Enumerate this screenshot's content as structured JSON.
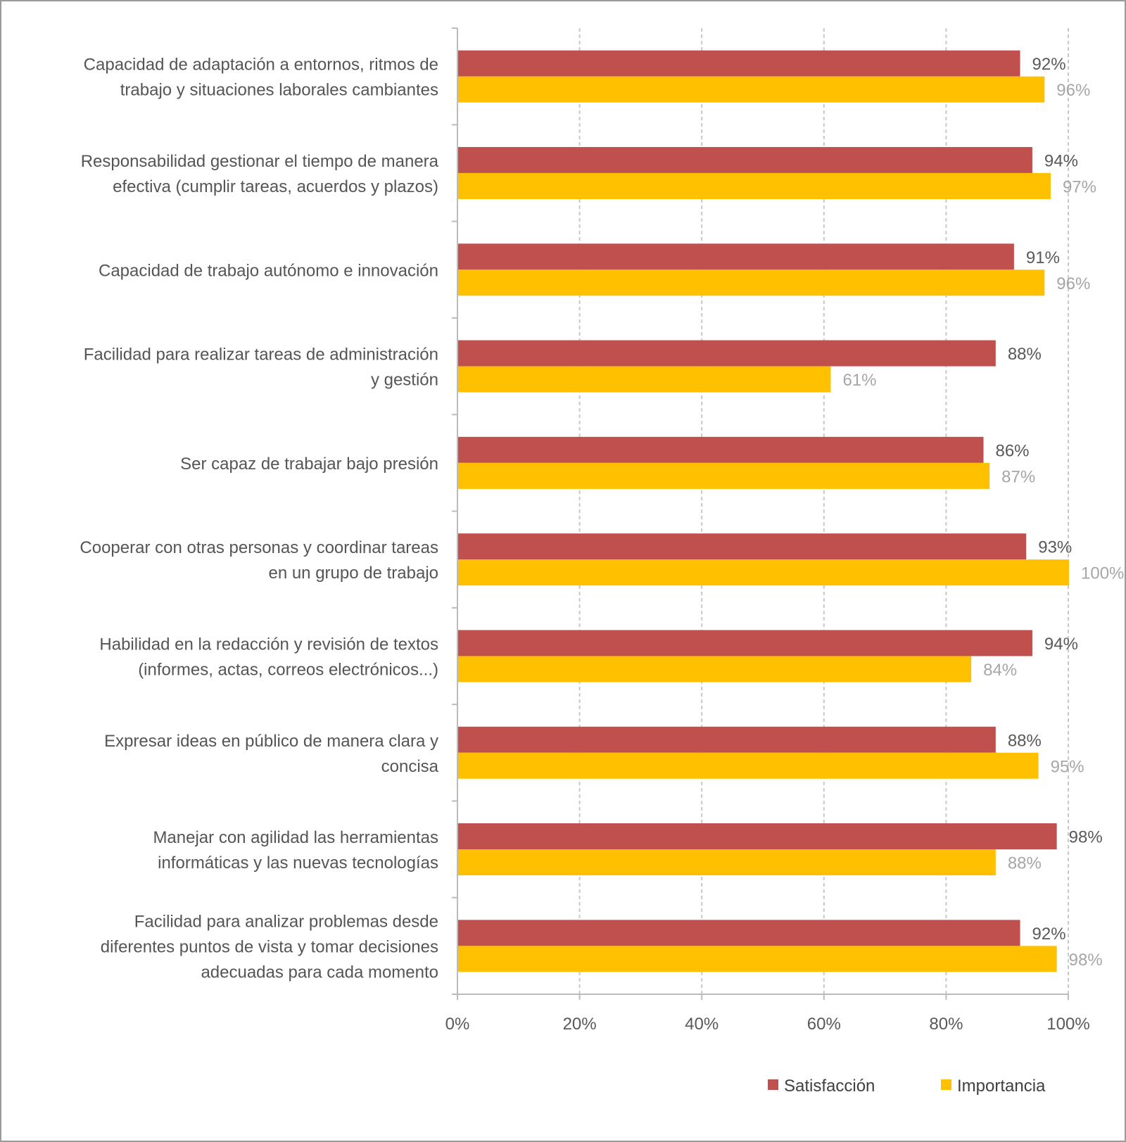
{
  "chart_data": {
    "type": "bar",
    "orientation": "horizontal",
    "title": "",
    "xlabel": "",
    "ylabel": "",
    "xlim": [
      0,
      100
    ],
    "x_ticks": [
      "0%",
      "20%",
      "40%",
      "60%",
      "80%",
      "100%"
    ],
    "grid": "vertical dashed",
    "legend_position": "bottom-right",
    "categories": [
      [
        "Capacidad de adaptación a entornos, ritmos de",
        "trabajo y situaciones laborales cambiantes"
      ],
      [
        "Responsabilidad gestionar el tiempo de manera",
        "efectiva (cumplir tareas, acuerdos y plazos)"
      ],
      [
        "Capacidad de trabajo autónomo e innovación"
      ],
      [
        "Facilidad para realizar tareas de administración",
        "y gestión"
      ],
      [
        "Ser capaz de trabajar bajo presión"
      ],
      [
        "Cooperar con otras personas y coordinar tareas",
        "en un grupo de trabajo"
      ],
      [
        "Habilidad en la redacción y revisión de textos",
        "(informes, actas, correos electrónicos...)"
      ],
      [
        "Expresar ideas en público de manera clara y",
        "concisa"
      ],
      [
        "Manejar con agilidad las herramientas",
        "informáticas y las nuevas tecnologías"
      ],
      [
        "Facilidad para analizar problemas desde",
        "diferentes puntos de vista y tomar decisiones",
        "adecuadas para cada momento"
      ]
    ],
    "series": [
      {
        "name": "Satisfacción",
        "color": "#C0504D",
        "label_color": "#595959",
        "values": [
          92,
          94,
          91,
          88,
          86,
          93,
          94,
          88,
          98,
          92
        ],
        "labels": [
          "92%",
          "94%",
          "91%",
          "88%",
          "86%",
          "93%",
          "94%",
          "88%",
          "98%",
          "92%"
        ]
      },
      {
        "name": "Importancia",
        "color": "#FFC000",
        "label_color": "#a6a6a6",
        "values": [
          96,
          97,
          96,
          61,
          87,
          100,
          84,
          95,
          88,
          98
        ],
        "labels": [
          "96%",
          "97%",
          "96%",
          "61%",
          "87%",
          "100%",
          "84%",
          "95%",
          "88%",
          "98%"
        ]
      }
    ]
  }
}
